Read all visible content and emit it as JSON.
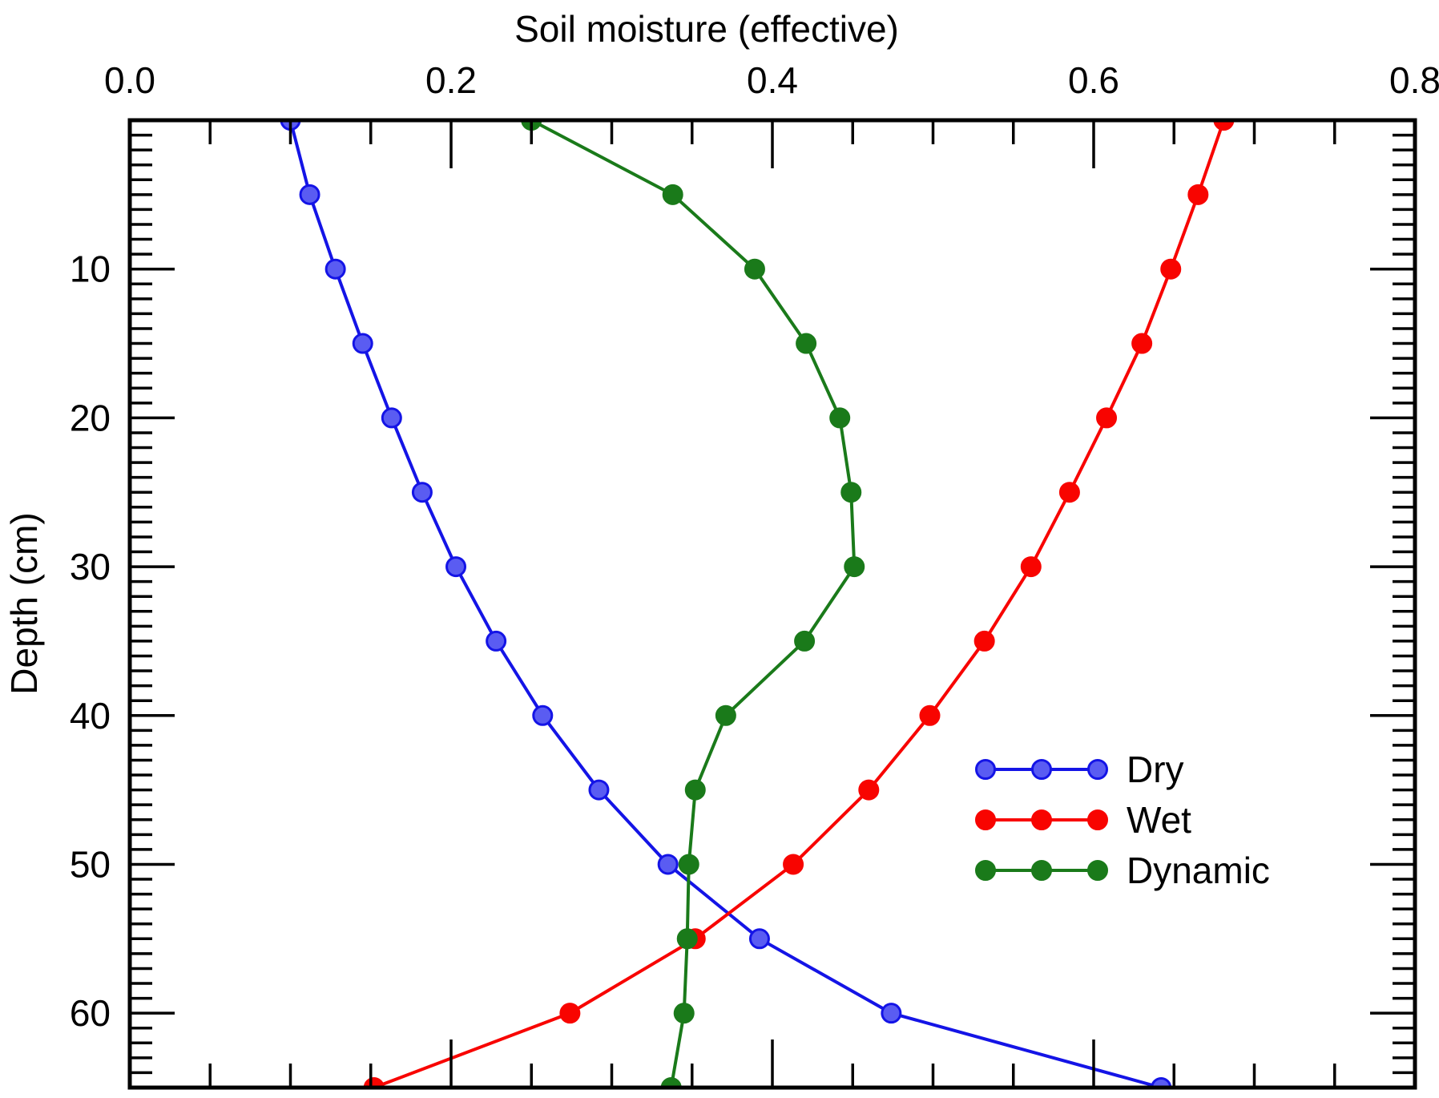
{
  "chart_data": {
    "type": "line",
    "title": "Soil moisture (effective)",
    "xlabel": "Soil moisture (effective)",
    "ylabel": "Depth (cm)",
    "xlim": [
      0.0,
      0.8
    ],
    "ylim": [
      0,
      65
    ],
    "y_inverted": true,
    "grid": false,
    "axis_color": "#000000",
    "background_color": "#ffffff",
    "x_ticks": [
      {
        "v": 0.0,
        "label": "0.0"
      },
      {
        "v": 0.2,
        "label": "0.2"
      },
      {
        "v": 0.4,
        "label": "0.4"
      },
      {
        "v": 0.6,
        "label": "0.6"
      },
      {
        "v": 0.8,
        "label": "0.8"
      }
    ],
    "x_minor_step": 0.05,
    "y_ticks": [
      {
        "v": 10,
        "label": "10"
      },
      {
        "v": 20,
        "label": "20"
      },
      {
        "v": 30,
        "label": "30"
      },
      {
        "v": 40,
        "label": "40"
      },
      {
        "v": 50,
        "label": "50"
      },
      {
        "v": 60,
        "label": "60"
      }
    ],
    "y_minor_step": 1,
    "depths": [
      0,
      5,
      10,
      15,
      20,
      25,
      30,
      35,
      40,
      45,
      50,
      55,
      60,
      65
    ],
    "series": [
      {
        "name": "Dry",
        "line_color": "#1414e6",
        "marker_fill": "#5a5cf2",
        "marker_edge": "#1414e6",
        "values": [
          0.1,
          0.112,
          0.128,
          0.145,
          0.163,
          0.182,
          0.203,
          0.228,
          0.257,
          0.292,
          0.335,
          0.392,
          0.474,
          0.642
        ]
      },
      {
        "name": "Wet",
        "line_color": "#f80400",
        "marker_fill": "#f80400",
        "marker_edge": "#f80400",
        "values": [
          0.681,
          0.665,
          0.648,
          0.63,
          0.608,
          0.585,
          0.561,
          0.532,
          0.498,
          0.46,
          0.413,
          0.352,
          0.274,
          0.152
        ]
      },
      {
        "name": "Dynamic",
        "line_color": "#1a7a1a",
        "marker_fill": "#1a7a1a",
        "marker_edge": "#1a7a1a",
        "values": [
          0.25,
          0.338,
          0.389,
          0.421,
          0.442,
          0.449,
          0.451,
          0.42,
          0.371,
          0.352,
          0.348,
          0.347,
          0.345,
          0.337
        ]
      }
    ],
    "legend": {
      "position": "right-middle",
      "labels": [
        "Dry",
        "Wet",
        "Dynamic"
      ]
    }
  }
}
